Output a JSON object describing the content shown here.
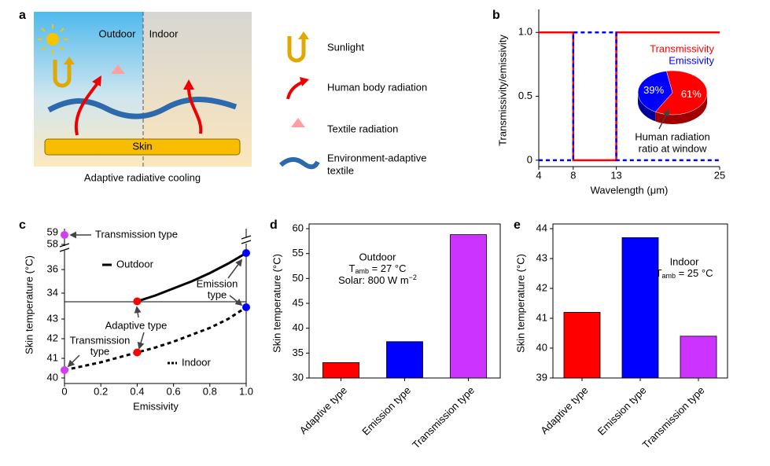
{
  "diagram": {
    "label": "a",
    "outdoor": "Outdoor",
    "indoor": "Indoor",
    "skin": "Skin",
    "caption": "Adaptive radiative cooling",
    "legend": [
      "Sunlight",
      "Human body radiation",
      "Textile radiation",
      [
        "Environment-adaptive",
        "textile"
      ]
    ]
  },
  "chart_data": [
    {
      "type": "line",
      "label": "b",
      "xlabel": "Wavelength (μm)",
      "ylabel": "Transmissivity/emissivity",
      "x": [
        4,
        8,
        8,
        13,
        13,
        25
      ],
      "xlim": [
        4,
        25
      ],
      "xticks": [
        4,
        8,
        13,
        25
      ],
      "ylim": [
        -0.05,
        1.18
      ],
      "yticks": [
        0,
        0.5,
        {
          "value": 1,
          "label": "1.0"
        }
      ],
      "series": [
        {
          "name": "Transmissivity",
          "color": "#ff0000",
          "line_style": "solid",
          "values": [
            1,
            1,
            0,
            0,
            1,
            1
          ]
        },
        {
          "name": "Emissivity",
          "color": "#0000ff",
          "line_style": "dashed",
          "values": [
            0,
            0,
            1,
            1,
            0,
            0
          ]
        }
      ],
      "inset": {
        "type": "pie",
        "values": [
          61,
          39
        ],
        "value_labels": [
          "61%",
          "39%"
        ],
        "colors": [
          "#ff0000",
          "#0000ff"
        ],
        "annotation": [
          "Human radiation",
          "ratio at window"
        ]
      }
    },
    {
      "type": "line",
      "label": "c",
      "xlabel": "Emissivity",
      "ylabel": "Skin temperature (°C)",
      "xlim": [
        0,
        1
      ],
      "xticks": [
        0,
        0.2,
        0.4,
        0.6,
        0.8,
        {
          "value": 1,
          "label": "1.0"
        }
      ],
      "y_sections": [
        {
          "ylim": [
            57.6,
            59.3
          ],
          "yticks": [
            58,
            59
          ]
        },
        {
          "ylim": [
            33.3,
            37.7
          ],
          "yticks": [
            34,
            36
          ]
        },
        {
          "ylim": [
            39.7,
            43.9
          ],
          "yticks": [
            40,
            41,
            42,
            43
          ]
        }
      ],
      "series": [
        {
          "name": "Outdoor",
          "color": "#000000",
          "line_style": "solid",
          "x": [
            0.4,
            0.5,
            0.6,
            0.7,
            0.8,
            0.9,
            1.0
          ],
          "values": [
            33.3,
            33.8,
            34.4,
            35.0,
            35.7,
            36.5,
            37.4
          ]
        },
        {
          "name": "Indoor",
          "color": "#000000",
          "line_style": "dashed",
          "x": [
            0,
            0.1,
            0.2,
            0.3,
            0.4,
            0.5,
            0.6,
            0.7,
            0.8,
            0.9,
            1.0
          ],
          "values": [
            40.4,
            40.6,
            40.8,
            41.05,
            41.3,
            41.55,
            41.85,
            42.2,
            42.55,
            43.0,
            43.6
          ]
        }
      ],
      "points": {
        "x": [
          0,
          0,
          0.4,
          0.4,
          1,
          1
        ],
        "values": [
          58.8,
          40.4,
          33.3,
          41.3,
          37.4,
          43.6
        ],
        "colors": [
          "#d63cf0",
          "#d63cf0",
          "#ff0000",
          "#ff0000",
          "#0000ff",
          "#0000ff"
        ]
      },
      "annotations": [
        [
          "Transmission type"
        ],
        [
          "Adaptive type"
        ],
        [
          "Emission",
          "type"
        ],
        [
          "Transmission",
          "type"
        ]
      ]
    },
    {
      "type": "bar",
      "label": "d",
      "ylabel": "Skin temperature (°C)",
      "categories": [
        "Adaptive type",
        "Emission type",
        "Transmission type"
      ],
      "values": [
        33.1,
        37.3,
        58.8
      ],
      "colors": [
        "#ff0000",
        "#0000ff",
        "#cc33ff"
      ],
      "ylim": [
        30,
        60
      ],
      "yticks": [
        30,
        35,
        40,
        45,
        50,
        55,
        60
      ],
      "annotation": [
        "Outdoor",
        [
          "T",
          "amb",
          " = 27 °C"
        ],
        [
          "Solar: 800 W m",
          "−2"
        ]
      ]
    },
    {
      "type": "bar",
      "label": "e",
      "ylabel": "Skin temperature (°C)",
      "categories": [
        "Adaptive type",
        "Emission type",
        "Transmission type"
      ],
      "values": [
        41.2,
        43.7,
        40.4
      ],
      "colors": [
        "#ff0000",
        "#0000ff",
        "#cc33ff"
      ],
      "ylim": [
        39,
        44
      ],
      "yticks": [
        39,
        40,
        41,
        42,
        43,
        44
      ],
      "annotation": [
        "Indoor",
        [
          "T",
          "amb",
          " = 25 °C"
        ]
      ]
    }
  ]
}
